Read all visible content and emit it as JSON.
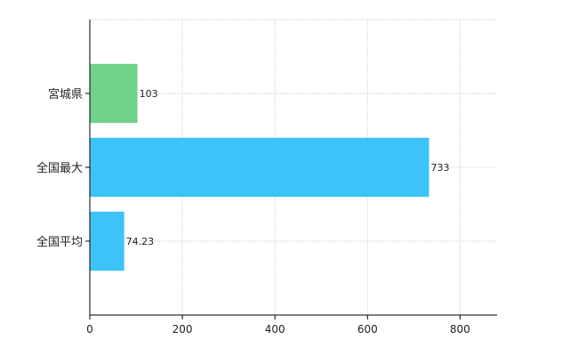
{
  "chart_data": {
    "type": "bar",
    "orientation": "horizontal",
    "categories": [
      "宮城県",
      "全国最大",
      "全国平均"
    ],
    "values": [
      103,
      733,
      74.23
    ],
    "data_labels": [
      "103",
      "733",
      "74.23"
    ],
    "bar_colors": [
      "#72d28a",
      "#3cc3f7",
      "#3cc3f7"
    ],
    "xlim": [
      0,
      880
    ],
    "x_ticks": [
      0,
      200,
      400,
      600,
      800
    ],
    "x_tick_labels": [
      "0",
      "200",
      "400",
      "600",
      "800"
    ],
    "grid": true,
    "title": "",
    "xlabel": "",
    "ylabel": ""
  }
}
